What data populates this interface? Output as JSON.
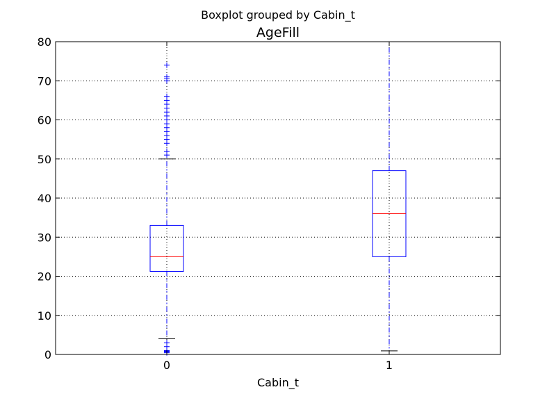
{
  "chart_data": {
    "type": "boxplot",
    "suptitle": "Boxplot grouped by Cabin_t",
    "title": "AgeFill",
    "xlabel": "Cabin_t",
    "ylabel": "",
    "ylim": [
      0,
      80
    ],
    "yticks": [
      0,
      10,
      20,
      30,
      40,
      50,
      60,
      70,
      80
    ],
    "grid": true,
    "categories": [
      "0",
      "1"
    ],
    "boxes": [
      {
        "category": "0",
        "whisker_low": 4,
        "q1": 21.25,
        "median": 25,
        "q3": 33,
        "whisker_high": 50,
        "fliers": [
          0.42,
          0.67,
          0.75,
          0.83,
          0.92,
          1,
          2,
          3,
          51,
          52,
          54,
          55,
          56,
          57,
          58,
          59,
          60,
          61,
          62,
          63,
          64,
          65,
          66,
          70,
          70.5,
          71,
          74
        ]
      },
      {
        "category": "1",
        "whisker_low": 0.92,
        "q1": 25,
        "median": 36,
        "q3": 47,
        "whisker_high": 80,
        "fliers": []
      }
    ],
    "colors": {
      "box": "#0000ff",
      "whisker": "#0000ff",
      "median": "#ff0000",
      "cap": "#000000",
      "flier": "#0000ff",
      "grid": "#000000"
    }
  }
}
